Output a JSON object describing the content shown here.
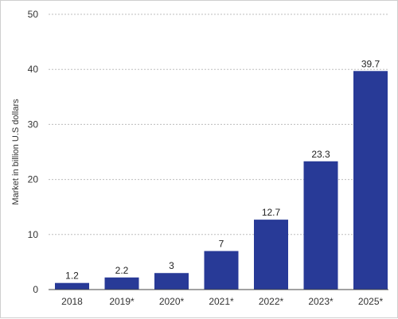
{
  "chart_data": {
    "type": "bar",
    "title": "",
    "xlabel": "",
    "ylabel": "Market in billion U.S dollars",
    "categories": [
      "2018",
      "2019*",
      "2020*",
      "2021*",
      "2022*",
      "2023*",
      "2025*"
    ],
    "values": [
      1.2,
      2.2,
      3,
      7,
      12.7,
      23.3,
      39.7
    ],
    "value_labels": [
      "1.2",
      "2.2",
      "3",
      "7",
      "12.7",
      "23.3",
      "39.7"
    ],
    "ylim": [
      0,
      50
    ],
    "yticks": [
      0,
      10,
      20,
      30,
      40,
      50
    ],
    "grid": "horizontal dotted",
    "colors": {
      "bar": "#283a97",
      "grid": "#bdbdbd",
      "axis": "#444444"
    }
  }
}
